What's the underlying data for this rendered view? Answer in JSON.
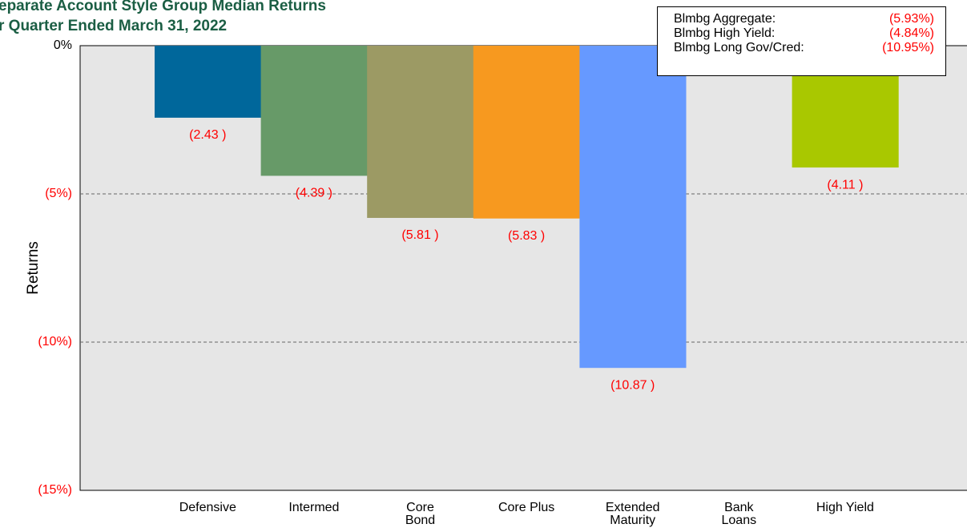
{
  "chart_data": {
    "type": "bar",
    "title_lines": [
      "eparate Account Style Group Median Returns",
      "r Quarter Ended March 31, 2022"
    ],
    "y_label": "Returns",
    "categories": [
      "Defensive",
      "Intermed",
      "Core\nBond",
      "Core Plus",
      "Extended\nMaturity",
      "Bank\nLoans",
      "High Yield"
    ],
    "values": [
      -2.43,
      -4.39,
      -5.81,
      -5.83,
      -10.87,
      null,
      -4.11
    ],
    "value_labels": [
      "(2.43 )",
      "(4.39 )",
      "(5.81 )",
      "(5.83 )",
      "(10.87 )",
      null,
      "(4.11 )"
    ],
    "colors": [
      "#00679b",
      "#679a68",
      "#9c9a64",
      "#f7991f",
      "#6699ff",
      null,
      "#a9c800"
    ],
    "ylim": [
      -15,
      0
    ],
    "yticks": [
      {
        "value": 0,
        "label": "0%"
      },
      {
        "value": -5,
        "label": "(5%)"
      },
      {
        "value": -10,
        "label": "(10%)"
      },
      {
        "value": -15,
        "label": "(15%)"
      }
    ],
    "grid": true,
    "benchmarks": [
      {
        "name": "Blmbg Aggregate:",
        "value": "(5.93%)"
      },
      {
        "name": "Blmbg High Yield:",
        "value": "(4.84%)"
      },
      {
        "name": "Blmbg Long Gov/Cred:",
        "value": "(10.95%)"
      }
    ]
  }
}
